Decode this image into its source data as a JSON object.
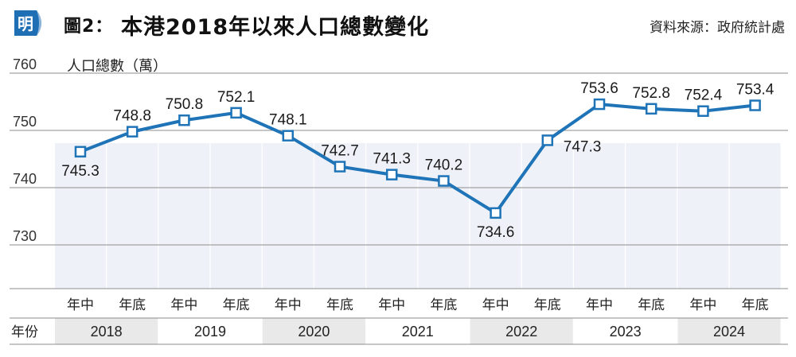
{
  "header": {
    "logo_text": "明",
    "figure_label": "圖2：",
    "title": "本港2018年以來人口總數變化",
    "source": "資料來源：政府統計處"
  },
  "colors": {
    "line": "#1f74b8",
    "marker_fill": "#ffffff",
    "stripe": "#eef2f8",
    "year_band": "#e9e9e9",
    "grid": "#8c8c8c",
    "logo_blue": "#1f6fb5"
  },
  "chart_data": {
    "type": "line",
    "ylabel": "人口總數（萬）",
    "ylim": [
      725,
      760
    ],
    "yticks": [
      730,
      740,
      750,
      760
    ],
    "grid": true,
    "categories": [
      "年中",
      "年底",
      "年中",
      "年底",
      "年中",
      "年底",
      "年中",
      "年底",
      "年中",
      "年底",
      "年中",
      "年底",
      "年中",
      "年底"
    ],
    "years": [
      "2018",
      "2019",
      "2020",
      "2021",
      "2022",
      "2023",
      "2024"
    ],
    "row_label": "年份",
    "values": [
      745.3,
      748.8,
      750.8,
      752.1,
      748.1,
      742.7,
      741.3,
      740.2,
      734.6,
      747.3,
      753.6,
      752.8,
      752.4,
      753.4
    ],
    "label_pos": [
      "below",
      "above",
      "above",
      "above",
      "above",
      "above",
      "above",
      "above",
      "below",
      "right",
      "above",
      "above",
      "above",
      "above"
    ]
  }
}
